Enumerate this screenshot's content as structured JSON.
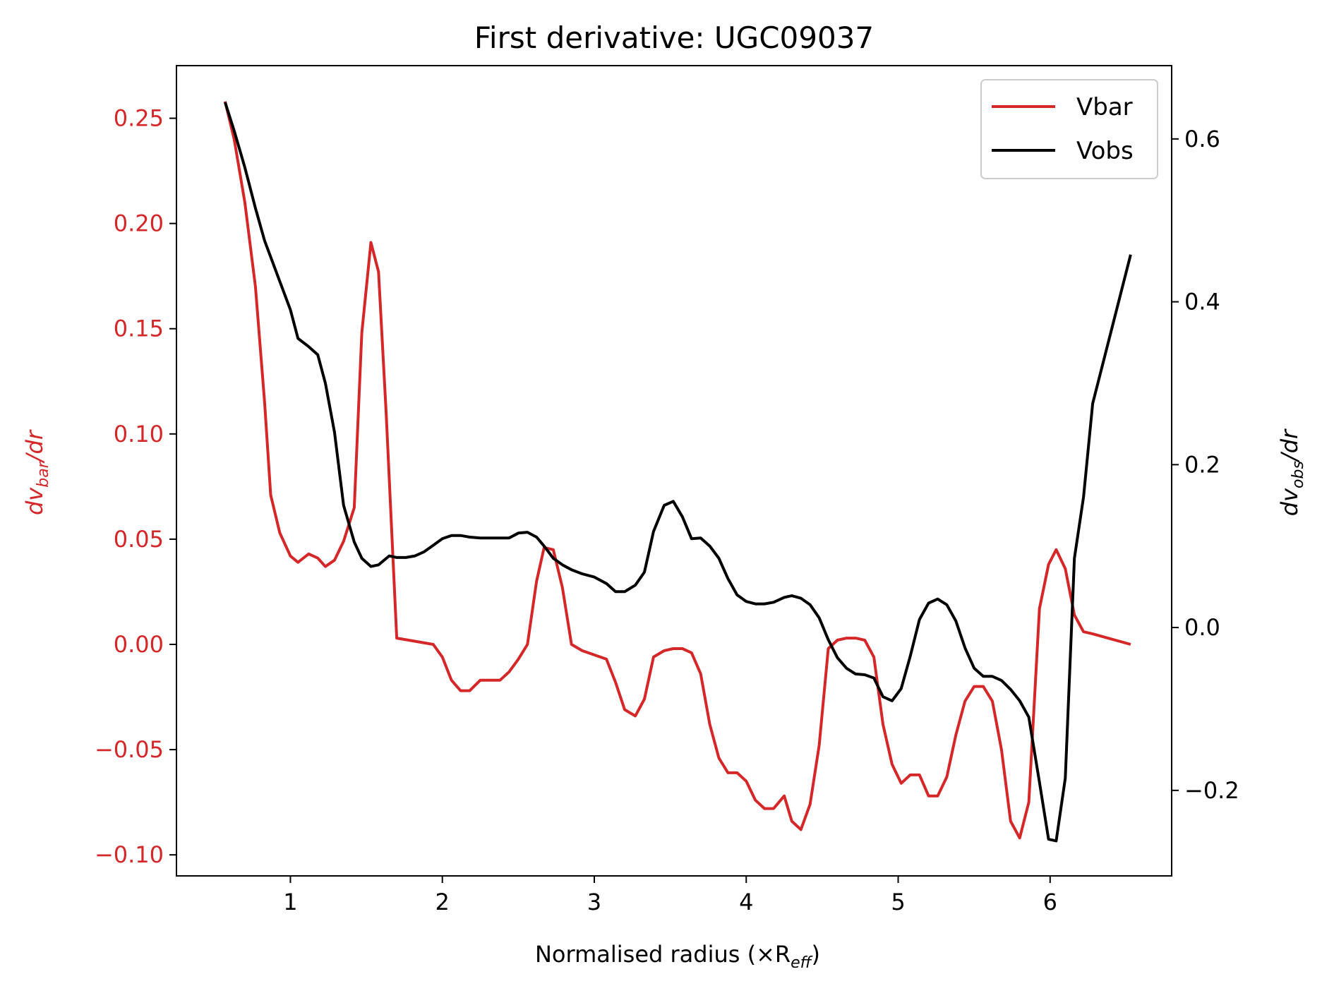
{
  "chart_data": {
    "type": "line",
    "title": "First derivative: UGC09037",
    "xlabel": "Normalised radius (×R",
    "xlabel_sub": "eff",
    "xlabel_end": ")",
    "ylabel_left": {
      "main": "dv",
      "sub": "bar",
      "end": "/dr"
    },
    "ylabel_right": {
      "main": "dv",
      "sub": "obs",
      "end": "/dr"
    },
    "xlim": [
      0.25,
      6.8
    ],
    "ylim_left": [
      -0.11,
      0.275
    ],
    "ylim_right": [
      -0.305,
      0.69
    ],
    "x_ticks": [
      1,
      2,
      3,
      4,
      5,
      6
    ],
    "x_tick_labels": [
      "1",
      "2",
      "3",
      "4",
      "5",
      "6"
    ],
    "y_left_ticks": [
      -0.1,
      -0.05,
      0.0,
      0.05,
      0.1,
      0.15,
      0.2,
      0.25
    ],
    "y_left_tick_labels": [
      "−0.10",
      "−0.05",
      "0.00",
      "0.05",
      "0.10",
      "0.15",
      "0.20",
      "0.25"
    ],
    "y_right_ticks": [
      -0.2,
      0.0,
      0.2,
      0.4,
      0.6
    ],
    "y_right_tick_labels": [
      "−0.2",
      "0.0",
      "0.2",
      "0.4",
      "0.6"
    ],
    "legend_position": "top-right",
    "colors": {
      "vbar": "#d62728",
      "vobs": "#000000",
      "axis": "#000000"
    },
    "series": [
      {
        "name": "Vbar",
        "axis": "left",
        "x": [
          0.57,
          0.63,
          0.7,
          0.77,
          0.83,
          0.87,
          0.93,
          1.0,
          1.05,
          1.12,
          1.18,
          1.23,
          1.29,
          1.35,
          1.42,
          1.47,
          1.53,
          1.58,
          1.63,
          1.7,
          1.94,
          2.0,
          2.06,
          2.12,
          2.18,
          2.25,
          2.32,
          2.38,
          2.44,
          2.5,
          2.56,
          2.62,
          2.67,
          2.73,
          2.79,
          2.85,
          2.92,
          3.0,
          3.08,
          3.14,
          3.2,
          3.27,
          3.33,
          3.39,
          3.46,
          3.52,
          3.58,
          3.64,
          3.7,
          3.76,
          3.82,
          3.88,
          3.94,
          4.0,
          4.06,
          4.12,
          4.18,
          4.25,
          4.3,
          4.36,
          4.42,
          4.48,
          4.54,
          4.6,
          4.66,
          4.72,
          4.78,
          4.84,
          4.9,
          4.96,
          5.02,
          5.08,
          5.14,
          5.2,
          5.26,
          5.32,
          5.38,
          5.44,
          5.5,
          5.56,
          5.62,
          5.68,
          5.74,
          5.8,
          5.86,
          5.93,
          5.99,
          6.04,
          6.1,
          6.16,
          6.22,
          6.28,
          6.53
        ],
        "y": [
          0.258,
          0.24,
          0.21,
          0.17,
          0.115,
          0.071,
          0.053,
          0.042,
          0.039,
          0.043,
          0.041,
          0.037,
          0.04,
          0.049,
          0.065,
          0.148,
          0.191,
          0.177,
          0.11,
          0.003,
          0.0,
          -0.006,
          -0.017,
          -0.022,
          -0.022,
          -0.017,
          -0.017,
          -0.017,
          -0.013,
          -0.007,
          0.0,
          0.03,
          0.046,
          0.045,
          0.027,
          0.0,
          -0.003,
          -0.005,
          -0.007,
          -0.018,
          -0.031,
          -0.034,
          -0.026,
          -0.006,
          -0.003,
          -0.002,
          -0.002,
          -0.004,
          -0.014,
          -0.038,
          -0.054,
          -0.061,
          -0.061,
          -0.065,
          -0.074,
          -0.078,
          -0.078,
          -0.072,
          -0.084,
          -0.088,
          -0.076,
          -0.048,
          -0.002,
          0.002,
          0.003,
          0.003,
          0.002,
          -0.006,
          -0.038,
          -0.057,
          -0.066,
          -0.062,
          -0.062,
          -0.072,
          -0.072,
          -0.063,
          -0.043,
          -0.027,
          -0.02,
          -0.02,
          -0.027,
          -0.05,
          -0.084,
          -0.092,
          -0.075,
          0.017,
          0.038,
          0.045,
          0.036,
          0.014,
          0.006,
          0.005,
          0.0
        ]
      },
      {
        "name": "Vobs",
        "axis": "right",
        "x": [
          0.57,
          0.63,
          0.7,
          0.77,
          0.83,
          0.87,
          0.93,
          1.0,
          1.05,
          1.12,
          1.18,
          1.23,
          1.29,
          1.35,
          1.42,
          1.47,
          1.53,
          1.58,
          1.65,
          1.7,
          1.76,
          1.82,
          1.88,
          1.94,
          2.0,
          2.06,
          2.12,
          2.18,
          2.25,
          2.32,
          2.38,
          2.44,
          2.5,
          2.56,
          2.62,
          2.67,
          2.73,
          2.79,
          2.85,
          2.92,
          3.0,
          3.08,
          3.14,
          3.2,
          3.27,
          3.33,
          3.39,
          3.46,
          3.52,
          3.58,
          3.64,
          3.7,
          3.76,
          3.82,
          3.88,
          3.94,
          4.0,
          4.06,
          4.12,
          4.18,
          4.25,
          4.3,
          4.36,
          4.42,
          4.48,
          4.54,
          4.6,
          4.66,
          4.72,
          4.78,
          4.84,
          4.9,
          4.96,
          5.02,
          5.08,
          5.14,
          5.2,
          5.26,
          5.32,
          5.38,
          5.44,
          5.5,
          5.56,
          5.62,
          5.68,
          5.74,
          5.8,
          5.86,
          5.93,
          5.99,
          6.04,
          6.1,
          6.16,
          6.22,
          6.28,
          6.53
        ],
        "y": [
          0.645,
          0.61,
          0.565,
          0.515,
          0.475,
          0.455,
          0.425,
          0.39,
          0.355,
          0.345,
          0.335,
          0.3,
          0.24,
          0.15,
          0.105,
          0.085,
          0.075,
          0.077,
          0.088,
          0.086,
          0.086,
          0.088,
          0.093,
          0.101,
          0.109,
          0.113,
          0.113,
          0.111,
          0.11,
          0.11,
          0.11,
          0.11,
          0.116,
          0.117,
          0.111,
          0.1,
          0.085,
          0.077,
          0.071,
          0.066,
          0.062,
          0.054,
          0.044,
          0.044,
          0.052,
          0.068,
          0.118,
          0.15,
          0.155,
          0.136,
          0.109,
          0.11,
          0.1,
          0.085,
          0.06,
          0.04,
          0.032,
          0.029,
          0.029,
          0.031,
          0.037,
          0.039,
          0.036,
          0.028,
          0.012,
          -0.015,
          -0.037,
          -0.05,
          -0.057,
          -0.058,
          -0.062,
          -0.085,
          -0.09,
          -0.075,
          -0.035,
          0.01,
          0.03,
          0.035,
          0.028,
          0.008,
          -0.025,
          -0.05,
          -0.06,
          -0.06,
          -0.065,
          -0.076,
          -0.09,
          -0.11,
          -0.19,
          -0.26,
          -0.262,
          -0.185,
          0.085,
          0.16,
          0.275,
          0.458
        ]
      }
    ]
  }
}
